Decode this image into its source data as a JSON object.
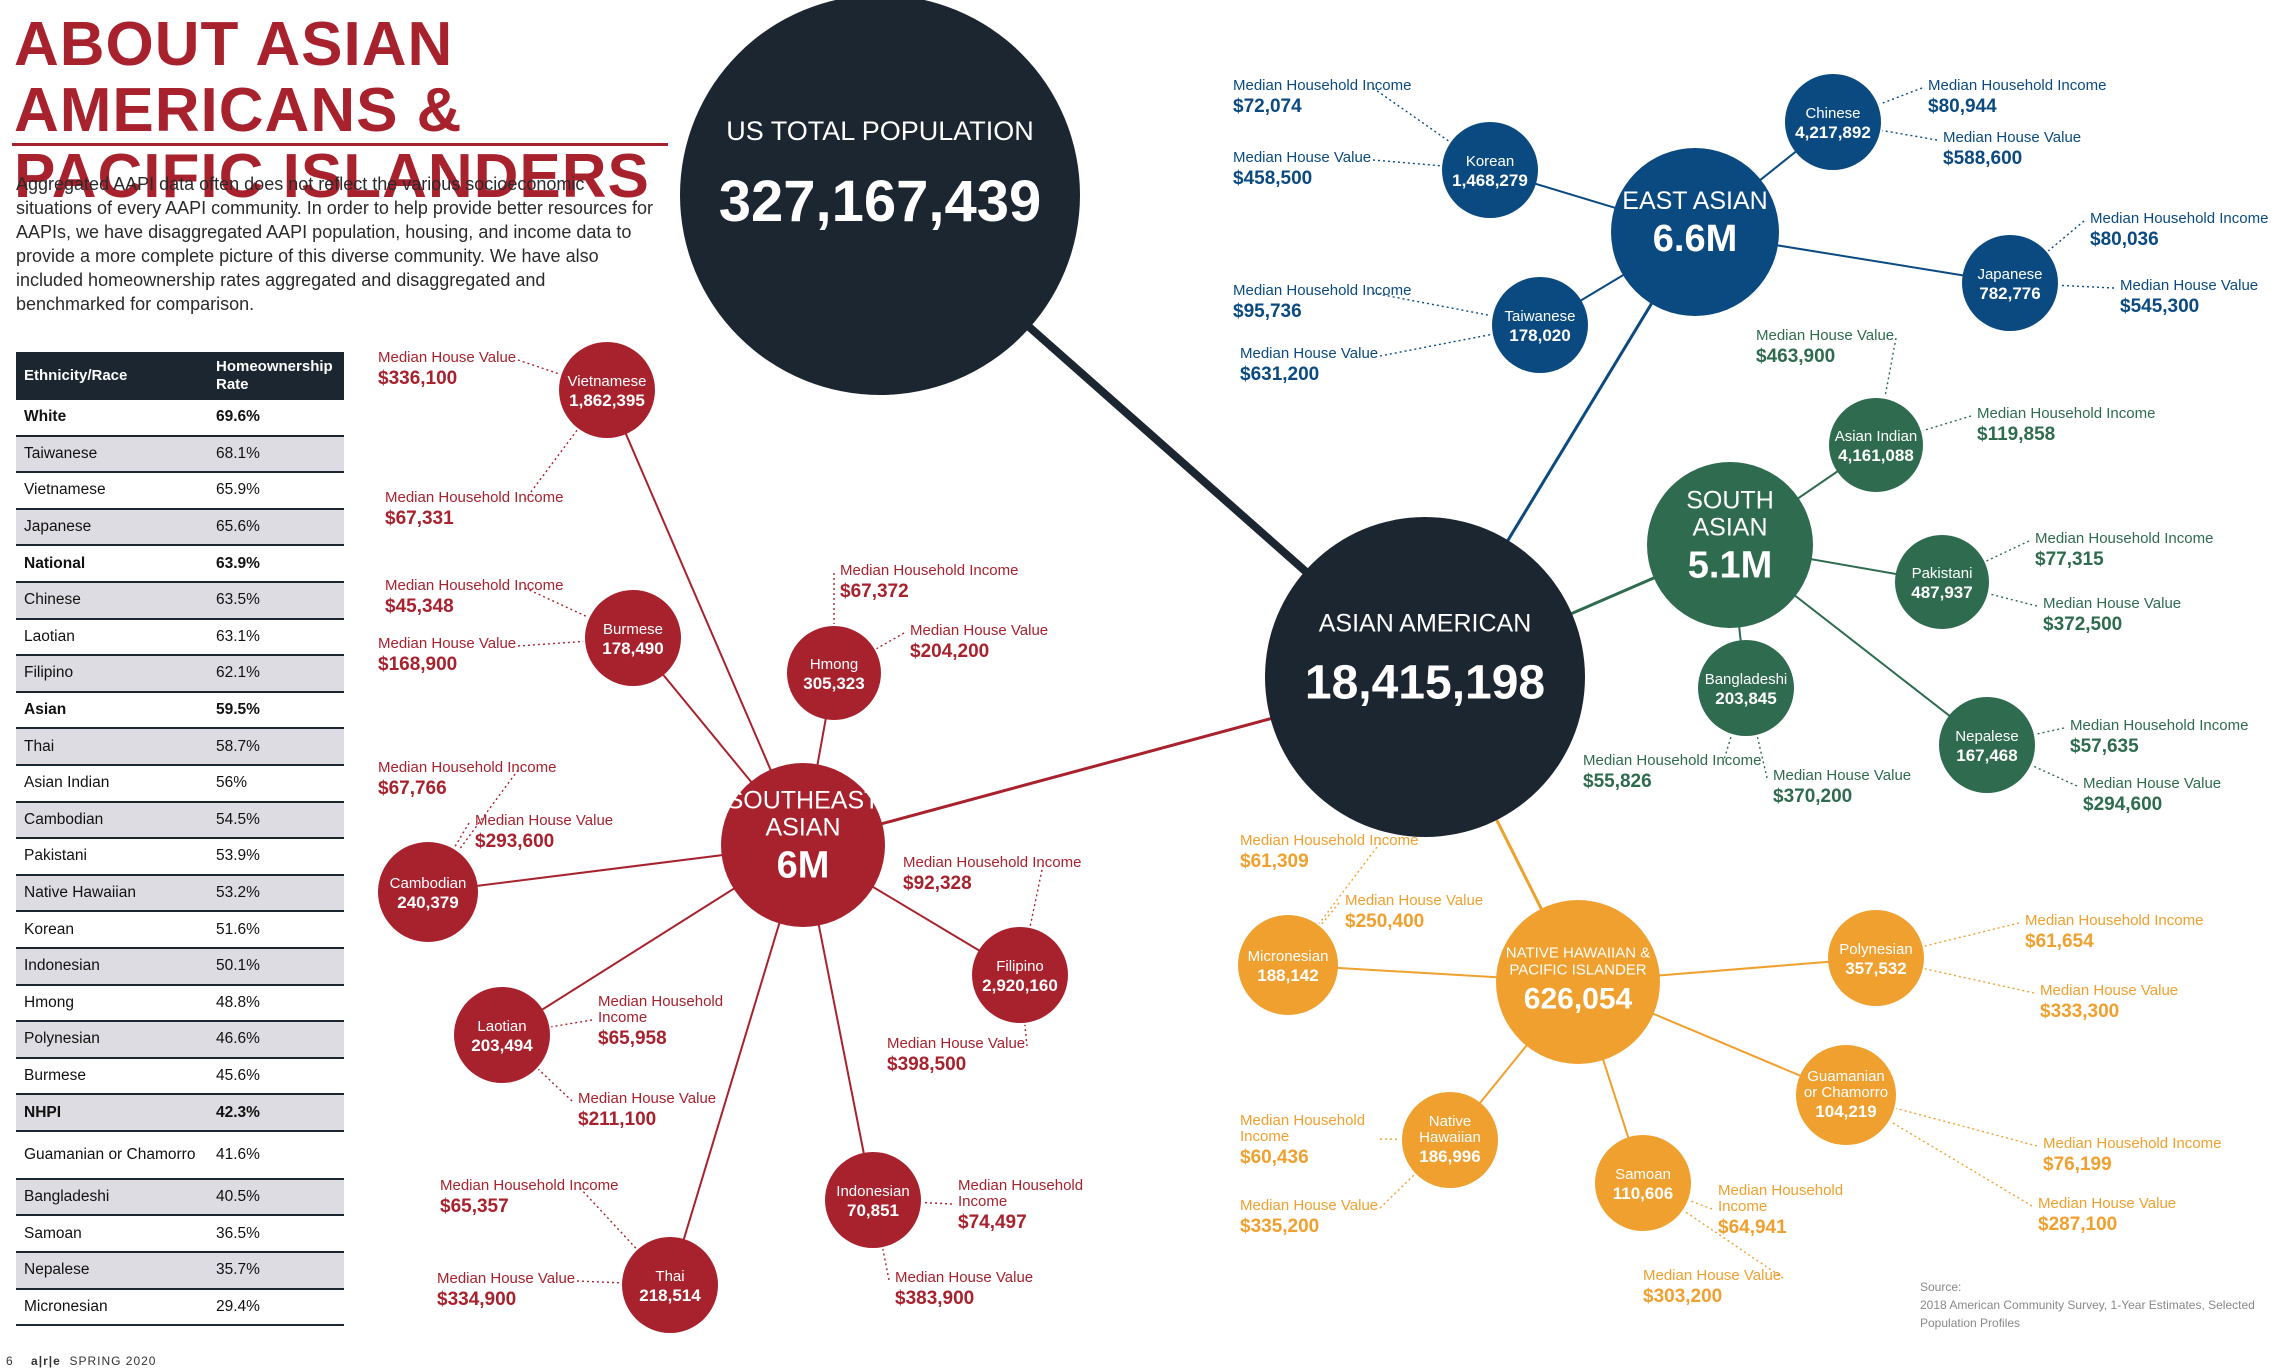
{
  "title": "ABOUT ASIAN AMERICANS & PACIFIC ISLANDERS",
  "intro": "Aggregated AAPI data often does not reflect the various socioeconomic situations of every AAPI community. In order to help provide better resources for AAPIs, we have disaggregated AAPI population, housing, and income data to provide a more complete picture of this diverse community. We have also included homeownership rates aggregated and disaggregated and benchmarked for comparison.",
  "table": {
    "headers": [
      "Ethnicity/Race",
      "Homeownership Rate"
    ],
    "rows": [
      {
        "group": "White",
        "rate": "69.6%",
        "bold": true
      },
      {
        "group": "Taiwanese",
        "rate": "68.1%"
      },
      {
        "group": "Vietnamese",
        "rate": "65.9%"
      },
      {
        "group": "Japanese",
        "rate": "65.6%"
      },
      {
        "group": "National",
        "rate": "63.9%",
        "bold": true
      },
      {
        "group": "Chinese",
        "rate": "63.5%"
      },
      {
        "group": "Laotian",
        "rate": "63.1%"
      },
      {
        "group": "Filipino",
        "rate": "62.1%"
      },
      {
        "group": "Asian",
        "rate": "59.5%",
        "bold": true
      },
      {
        "group": "Thai",
        "rate": "58.7%"
      },
      {
        "group": "Asian Indian",
        "rate": "56%"
      },
      {
        "group": "Cambodian",
        "rate": "54.5%"
      },
      {
        "group": "Pakistani",
        "rate": "53.9%"
      },
      {
        "group": "Native Hawaiian",
        "rate": "53.2%"
      },
      {
        "group": "Korean",
        "rate": "51.6%"
      },
      {
        "group": "Indonesian",
        "rate": "50.1%"
      },
      {
        "group": "Hmong",
        "rate": "48.8%"
      },
      {
        "group": "Polynesian",
        "rate": "46.6%"
      },
      {
        "group": "Burmese",
        "rate": "45.6%"
      },
      {
        "group": "NHPI",
        "rate": "42.3%",
        "bold": true
      },
      {
        "group": "Guamanian or Chamorro",
        "rate": "41.6%",
        "tall": true
      },
      {
        "group": "Bangladeshi",
        "rate": "40.5%"
      },
      {
        "group": "Samoan",
        "rate": "36.5%"
      },
      {
        "group": "Nepalese",
        "rate": "35.7%"
      },
      {
        "group": "Micronesian",
        "rate": "29.4%"
      }
    ]
  },
  "colors": {
    "dark": "#1c2630",
    "red": "#a8222e",
    "blue": "#0b4a80",
    "green": "#2e6b4f",
    "orange": "#f0a02e",
    "text": "#2a2a2a",
    "source": "#888888"
  },
  "big_nodes": {
    "us": {
      "label": "US TOTAL POPULATION",
      "value": "327,167,439"
    },
    "asian": {
      "label": "ASIAN AMERICAN",
      "value": "18,415,198"
    }
  },
  "hubs": {
    "east": {
      "label": "EAST ASIAN",
      "value": "6.6M"
    },
    "south": {
      "label": "SOUTH ASIAN",
      "value": "5.1M"
    },
    "southeast": {
      "label": "SOUTHEAST ASIAN",
      "value": "6M"
    },
    "nhpi": {
      "label": "NATIVE HAWAIIAN & PACIFIC ISLANDER",
      "value": "626,054"
    }
  },
  "groups": {
    "korean": {
      "name": "Korean",
      "pop": "1,468,279",
      "income_label": "Median Household Income",
      "income": "$72,074",
      "value_label": "Median House Value",
      "value": "$458,500"
    },
    "chinese": {
      "name": "Chinese",
      "pop": "4,217,892",
      "income_label": "Median Household Income",
      "income": "$80,944",
      "value_label": "Median House Value",
      "value": "$588,600"
    },
    "japanese": {
      "name": "Japanese",
      "pop": "782,776",
      "income_label": "Median Household Income",
      "income": "$80,036",
      "value_label": "Median House Value",
      "value": "$545,300"
    },
    "taiwanese": {
      "name": "Taiwanese",
      "pop": "178,020",
      "income_label": "Median Household Income",
      "income": "$95,736",
      "value_label": "Median House Value",
      "value": "$631,200"
    },
    "asian_indian": {
      "name": "Asian Indian",
      "pop": "4,161,088",
      "income_label": "Median Household Income",
      "income": "$119,858",
      "value_label": "Median House Value",
      "value": "$463,900"
    },
    "pakistani": {
      "name": "Pakistani",
      "pop": "487,937",
      "income_label": "Median Household Income",
      "income": "$77,315",
      "value_label": "Median House Value",
      "value": "$372,500"
    },
    "bangladeshi": {
      "name": "Bangladeshi",
      "pop": "203,845",
      "income_label": "Median Household Income",
      "income": "$55,826",
      "value_label": "Median House Value",
      "value": "$370,200"
    },
    "nepalese": {
      "name": "Nepalese",
      "pop": "167,468",
      "income_label": "Median Household Income",
      "income": "$57,635",
      "value_label": "Median House Value",
      "value": "$294,600"
    },
    "vietnamese": {
      "name": "Vietnamese",
      "pop": "1,862,395",
      "income_label": "Median Household Income",
      "income": "$67,331",
      "value_label": "Median House Value",
      "value": "$336,100"
    },
    "burmese": {
      "name": "Burmese",
      "pop": "178,490",
      "income_label": "Median Household Income",
      "income": "$45,348",
      "value_label": "Median House Value",
      "value": "$168,900"
    },
    "hmong": {
      "name": "Hmong",
      "pop": "305,323",
      "income_label": "Median Household Income",
      "income": "$67,372",
      "value_label": "Median House Value",
      "value": "$204,200"
    },
    "cambodian": {
      "name": "Cambodian",
      "pop": "240,379",
      "income_label": "Median Household Income",
      "income": "$67,766",
      "value_label": "Median House Value",
      "value": "$293,600"
    },
    "filipino": {
      "name": "Filipino",
      "pop": "2,920,160",
      "income_label": "Median Household Income",
      "income": "$92,328",
      "value_label": "Median House Value",
      "value": "$398,500"
    },
    "laotian": {
      "name": "Laotian",
      "pop": "203,494",
      "income_label": "Median Household Income",
      "income": "$65,958",
      "value_label": "Median House Value",
      "value": "$211,100"
    },
    "indonesian": {
      "name": "Indonesian",
      "pop": "70,851",
      "income_label": "Median Household Income",
      "income": "$74,497",
      "value_label": "Median House Value",
      "value": "$383,900"
    },
    "thai": {
      "name": "Thai",
      "pop": "218,514",
      "income_label": "Median Household Income",
      "income": "$65,357",
      "value_label": "Median House Value",
      "value": "$334,900"
    },
    "micronesian": {
      "name": "Micronesian",
      "pop": "188,142",
      "income_label": "Median Household Income",
      "income": "$61,309",
      "value_label": "Median House Value",
      "value": "$250,400"
    },
    "polynesian": {
      "name": "Polynesian",
      "pop": "357,532",
      "income_label": "Median Household Income",
      "income": "$61,654",
      "value_label": "Median House Value",
      "value": "$333,300"
    },
    "guamanian": {
      "name": "Guamanian or Chamorro",
      "pop": "104,219",
      "income_label": "Median Household Income",
      "income": "$76,199",
      "value_label": "Median House Value",
      "value": "$287,100"
    },
    "native_hawaiian": {
      "name": "Native Hawaiian",
      "pop": "186,996",
      "income_label": "Median Household Income",
      "income": "$60,436",
      "value_label": "Median House Value",
      "value": "$335,200"
    },
    "samoan": {
      "name": "Samoan",
      "pop": "110,606",
      "income_label": "Median Household Income",
      "income": "$64,941",
      "value_label": "Median House Value",
      "value": "$303,200"
    }
  },
  "source": {
    "label": "Source:",
    "text": "2018 American Community Survey, 1-Year Estimates, Selected Population Profiles"
  },
  "footer": {
    "page": "6",
    "brand": "a|r|e",
    "issue": "SPRING 2020"
  }
}
